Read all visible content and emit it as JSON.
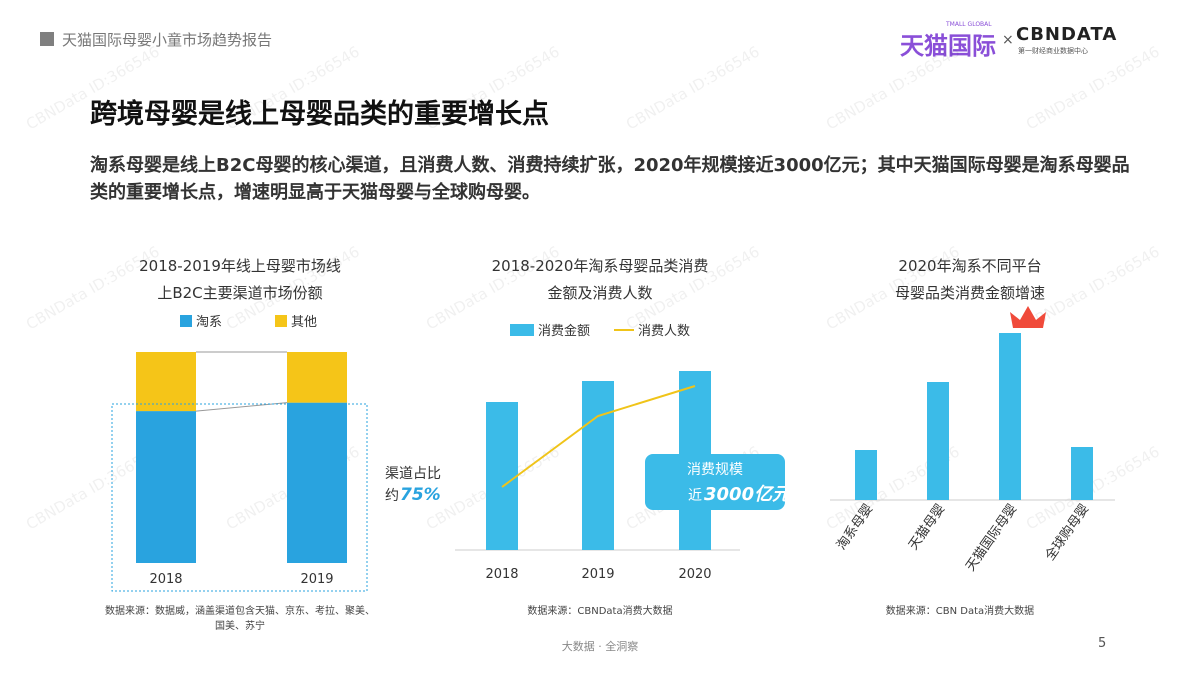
{
  "header": {
    "report_title": "天猫国际母婴小童市场趋势报告",
    "logo_tmall": "天猫国际",
    "logo_tmall_sub": "TMALL GLOBAL",
    "logo_cbn": "CBNDATA",
    "logo_cbn_sub": "第一财经商业数据中心",
    "logo_x": "×"
  },
  "title": "跨境母婴是线上母婴品类的重要增长点",
  "subtitle": "淘系母婴是线上B2C母婴的核心渠道，且消费人数、消费持续扩张，2020年规模接近3000亿元；其中天猫国际母婴是淘系母婴品类的重要增长点，增速明显高于天猫母婴与全球购母婴。",
  "watermark": "CBNData ID:366546",
  "chart_data": [
    {
      "type": "bar",
      "stacked": true,
      "title": [
        "2018-2019年线上母婴市场线",
        "上B2C主要渠道市场份额"
      ],
      "categories": [
        "2018",
        "2019"
      ],
      "series": [
        {
          "name": "淘系",
          "values": [
            72,
            76
          ],
          "color": "#29a3df"
        },
        {
          "name": "其他",
          "values": [
            28,
            24
          ],
          "color": "#f5c518"
        }
      ],
      "ylim": [
        0,
        100
      ],
      "annotation": {
        "line1": "渠道占比",
        "prefix": "约",
        "value": "75%"
      },
      "legend": "top",
      "source": [
        "数据来源：数据威，涵盖渠道包含天猫、京东、考拉、聚美、",
        "国美、苏宁"
      ]
    },
    {
      "type": "bar+line",
      "title": [
        "2018-2020年淘系母婴品类消费",
        "金额及消费人数"
      ],
      "categories": [
        "2018",
        "2019",
        "2020"
      ],
      "series": [
        {
          "name": "消费金额",
          "type": "bar",
          "values": [
            148,
            169,
            179
          ],
          "color": "#3bbbe8"
        },
        {
          "name": "消费人数",
          "type": "line",
          "values": [
            63,
            134,
            164
          ],
          "color": "#f0c419"
        }
      ],
      "callout": {
        "line1": "消费规模",
        "prefix": "近",
        "value": "3000亿元"
      },
      "legend": "top",
      "source": [
        "数据来源：CBNData消费大数据"
      ]
    },
    {
      "type": "bar",
      "title": [
        "2020年淘系不同平台",
        "母婴品类消费金额增速"
      ],
      "categories": [
        "淘系母婴",
        "天猫母婴",
        "天猫国际母婴",
        "全球购母婴"
      ],
      "values": [
        50,
        118,
        167,
        53
      ],
      "color": "#3bbbe8",
      "highlight": "天猫国际母婴",
      "highlight_icon": "crown-icon",
      "source": [
        "数据来源：CBN Data消费大数据"
      ]
    }
  ],
  "footer": {
    "tagline": "大数据 · 全洞察",
    "page": "5"
  }
}
